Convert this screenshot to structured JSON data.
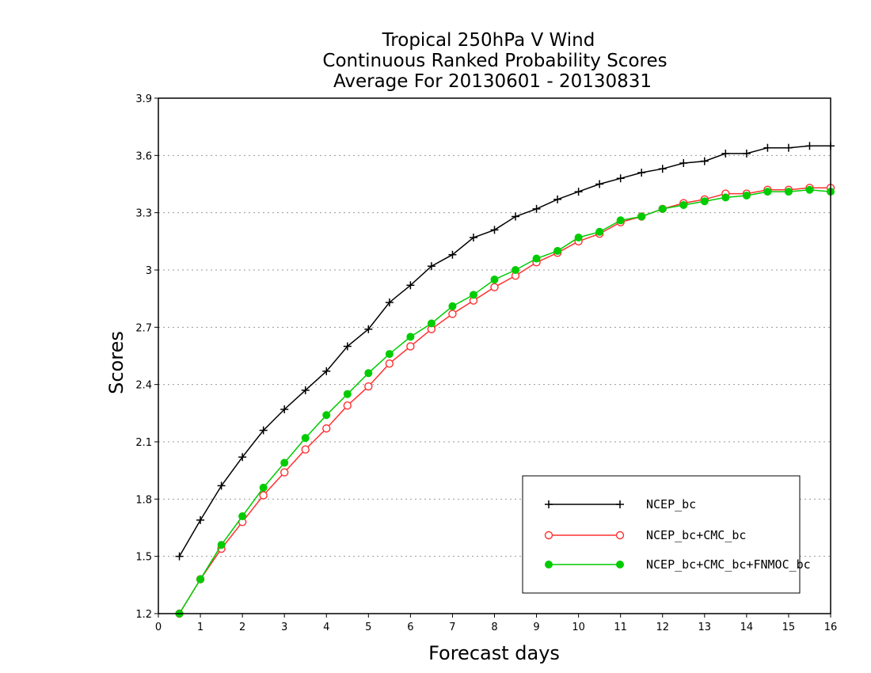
{
  "chart_data": {
    "type": "line",
    "title_lines": [
      "Tropical 250hPa V Wind",
      "Continuous Ranked Probability Scores",
      "Average For 20130601 - 20130831"
    ],
    "xlabel": "Forecast days",
    "ylabel": "Scores",
    "xlim": [
      0,
      16
    ],
    "ylim": [
      1.2,
      3.9
    ],
    "x_ticks": [
      0,
      1,
      2,
      3,
      4,
      5,
      6,
      7,
      8,
      9,
      10,
      11,
      12,
      13,
      14,
      15,
      16
    ],
    "y_ticks": [
      1.2,
      1.5,
      1.8,
      2.1,
      2.4,
      2.7,
      3,
      3.3,
      3.6,
      3.9
    ],
    "y_tick_labels": [
      "1.2",
      "1.5",
      "1.8",
      "2.1",
      "2.4",
      "2.7",
      "3",
      "3.3",
      "3.6",
      "3.9"
    ],
    "grid": "horizontal dotted",
    "legend_position": "bottom-right",
    "x": [
      0.5,
      1,
      1.5,
      2,
      2.5,
      3,
      3.5,
      4,
      4.5,
      5,
      5.5,
      6,
      6.5,
      7,
      7.5,
      8,
      8.5,
      9,
      9.5,
      10,
      10.5,
      11,
      11.5,
      12,
      12.5,
      13,
      13.5,
      14,
      14.5,
      15,
      15.5,
      16
    ],
    "series": [
      {
        "name": "NCEP_bc",
        "color": "#000000",
        "marker": "plus",
        "values": [
          1.5,
          1.69,
          1.87,
          2.02,
          2.16,
          2.27,
          2.37,
          2.47,
          2.6,
          2.69,
          2.83,
          2.92,
          3.02,
          3.08,
          3.17,
          3.21,
          3.28,
          3.32,
          3.37,
          3.41,
          3.45,
          3.48,
          3.51,
          3.53,
          3.56,
          3.57,
          3.61,
          3.61,
          3.64,
          3.64,
          3.65,
          3.65
        ]
      },
      {
        "name": "NCEP_bc+CMC_bc",
        "color": "#ff3030",
        "marker": "open-circle",
        "values": [
          1.2,
          1.38,
          1.54,
          1.68,
          1.82,
          1.94,
          2.06,
          2.17,
          2.29,
          2.39,
          2.51,
          2.6,
          2.69,
          2.77,
          2.84,
          2.91,
          2.97,
          3.04,
          3.09,
          3.15,
          3.19,
          3.25,
          3.28,
          3.32,
          3.35,
          3.37,
          3.4,
          3.4,
          3.42,
          3.42,
          3.43,
          3.43
        ]
      },
      {
        "name": "NCEP_bc+CMC_bc+FNMOC_bc",
        "color": "#00cc00",
        "marker": "filled-circle",
        "values": [
          1.2,
          1.38,
          1.56,
          1.71,
          1.86,
          1.99,
          2.12,
          2.24,
          2.35,
          2.46,
          2.56,
          2.65,
          2.72,
          2.81,
          2.87,
          2.95,
          3.0,
          3.06,
          3.1,
          3.17,
          3.2,
          3.26,
          3.28,
          3.32,
          3.34,
          3.36,
          3.38,
          3.39,
          3.41,
          3.41,
          3.42,
          3.41
        ]
      }
    ]
  }
}
